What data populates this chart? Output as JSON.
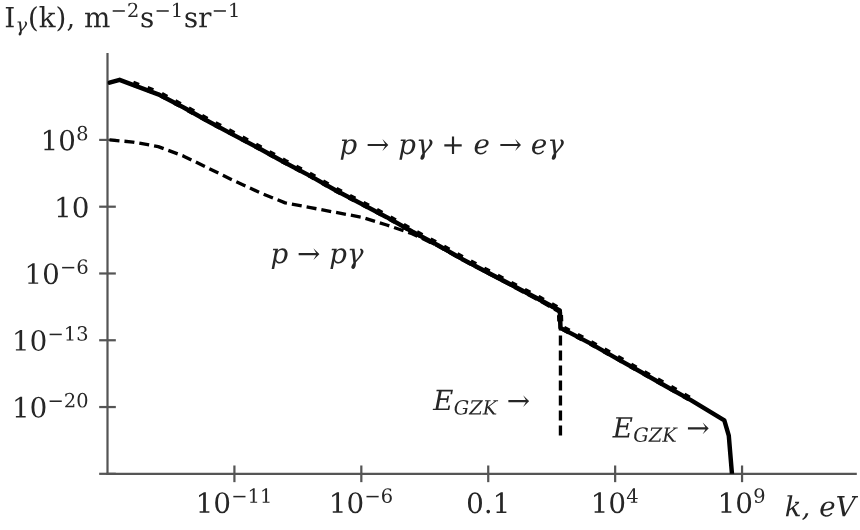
{
  "chart_data": {
    "type": "line",
    "log": "xy",
    "grid": false,
    "xlabel": "k, eV",
    "ylabel": "I$_{γ}$(k), m$^{−2}$s$^{−1}$sr$^{−1}$",
    "xlim": [
      1e-16,
      30000000000000.0
    ],
    "ylim": [
      1e-27,
      1e+17
    ],
    "xticks": [
      {
        "value": 1e-11,
        "label": "10$^{−11}$"
      },
      {
        "value": 1e-06,
        "label": "10$^{−6}$"
      },
      0.1,
      {
        "value": 10000,
        "label": "10$^{4}$"
      },
      {
        "value": 1000000000.0,
        "label": "10$^{9}$"
      }
    ],
    "yticks": [
      {
        "value": 1e-27,
        "label": null
      },
      {
        "value": 1e-20,
        "label": "10$^{−20}$"
      },
      {
        "value": 1e-13,
        "label": "10$^{−13}$"
      },
      {
        "value": 1e-06,
        "label": "10$^{−6}$"
      },
      10,
      {
        "value": 100000000.0,
        "label": "10$^{8}$"
      }
    ],
    "series": [
      {
        "color": "#000000",
        "line_style": "solid",
        "x": [
          1.2e-16,
          3e-16,
          1e-15,
          1e-14,
          1e-13,
          1e-12,
          1e-11,
          1e-10,
          1e-09,
          1e-08,
          1e-07,
          1e-06,
          1e-05,
          0.0001,
          0.001,
          0.01,
          0.1,
          1,
          10,
          66,
          70,
          1000.0,
          10000.0,
          100000.0,
          1000000.0,
          10000000.0,
          200000000.0,
          300000000.0,
          400000000.0
        ],
        "values": [
          100000000000000.0,
          200000000000000.0,
          60000000000000.0,
          6000000000000.0,
          250000000000.0,
          8000000000.0,
          300000000.0,
          12000000.0,
          400000.0,
          16000.0,
          500,
          20,
          0.8,
          0.025,
          0.001,
          3e-05,
          1.2e-06,
          5e-08,
          2e-09,
          1.3e-10,
          2e-12,
          5e-14,
          1.5e-15,
          5e-17,
          1.5e-18,
          5e-20,
          4e-22,
          1e-23,
          1e-27
        ]
      },
      {
        "color": "#000000",
        "line_style": "dashed",
        "x": [
          1.2e-16,
          1e-15,
          1e-14,
          1e-13,
          1e-12,
          1e-11,
          1e-10,
          1e-09,
          1e-08,
          1e-07,
          1e-06,
          1e-05,
          0.0001,
          0.001,
          0.01,
          0.1,
          1,
          10,
          70,
          70
        ],
        "values": [
          100000000.0,
          60000000.0,
          20000000.0,
          2000000.0,
          100000.0,
          5000.0,
          300,
          25,
          8,
          2.5,
          0.8,
          0.12,
          0.015,
          0.0008,
          2.5e-05,
          1e-06,
          4e-08,
          1.5e-09,
          8e-11,
          1e-23
        ]
      },
      {
        "color": "#000000",
        "line_style": "dotted",
        "x": [
          1e-15,
          1e-14,
          1e-13,
          1e-12,
          1e-11,
          1e-10,
          1e-09,
          1e-08,
          1e-07,
          1e-06,
          1e-05,
          0.0001,
          0.001,
          0.01,
          0.1,
          1,
          10,
          66,
          70,
          1000.0,
          10000.0,
          100000.0,
          1000000.0,
          10000000.0
        ],
        "values": [
          80000000000000.0,
          8000000000000.0,
          300000000000.0,
          10000000000.0,
          400000000.0,
          15000000.0,
          500000.0,
          20000.0,
          600,
          25,
          1,
          0.03,
          0.0012,
          4e-05,
          1.5e-06,
          6e-08,
          2.5e-09,
          1.6e-10,
          2.5e-12,
          6e-14,
          2e-15,
          6e-17,
          2e-18,
          6e-20
        ]
      }
    ],
    "annotations": [
      "p → pγ + e → eγ",
      "p → pγ",
      "E$_{GZK}$ →",
      "E$_{GZK}$ →"
    ]
  }
}
